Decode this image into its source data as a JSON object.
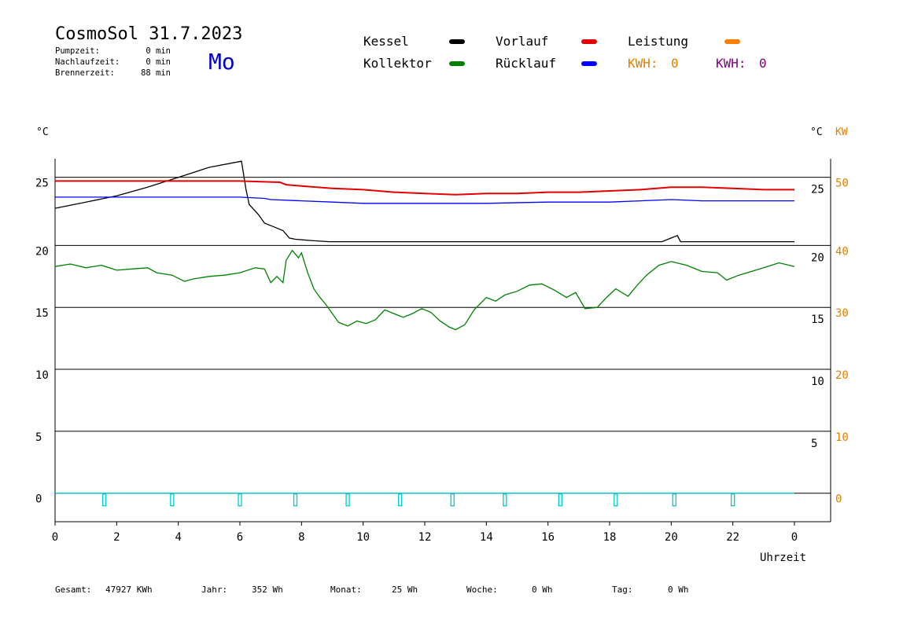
{
  "header": {
    "title": "CosmoSol 31.7.2023",
    "day": "Mo",
    "stats": [
      {
        "label": "Pumpzeit:",
        "value": "0 min"
      },
      {
        "label": "Nachlaufzeit:",
        "value": "0 min"
      },
      {
        "label": "Brennerzeit:",
        "value": "88 min"
      }
    ]
  },
  "legend": [
    {
      "name": "Kessel",
      "color": "#000000"
    },
    {
      "name": "Vorlauf",
      "color": "#e00000"
    },
    {
      "name": "Leistung",
      "color": "#ff8000"
    },
    {
      "name": "Kollektor",
      "color": "#008000"
    },
    {
      "name": "Rücklauf",
      "color": "#0000ff"
    }
  ],
  "kwh": [
    {
      "label": "KWH:",
      "value": "0",
      "color": "#e08000"
    },
    {
      "label": "KWH:",
      "value": "0",
      "color": "#800080"
    }
  ],
  "axes": {
    "left_unit": "°C",
    "right_unit": "°C",
    "right_unit2": "KW",
    "xlabel": "Uhrzeit",
    "x_ticks": [
      "0",
      "2",
      "4",
      "6",
      "8",
      "10",
      "12",
      "14",
      "16",
      "18",
      "20",
      "22",
      "0"
    ],
    "left_ticks": [
      "25",
      "20",
      "15",
      "10",
      "5",
      "0"
    ],
    "right_ticks": [
      "25",
      "20",
      "15",
      "10",
      "5"
    ],
    "kw_ticks": [
      "50",
      "40",
      "30",
      "20",
      "10",
      "0"
    ]
  },
  "footer": [
    {
      "label": "Gesamt:",
      "value": "47927 KWh"
    },
    {
      "label": "Jahr:",
      "value": "352 Wh"
    },
    {
      "label": "Monat:",
      "value": "25 Wh"
    },
    {
      "label": "Woche:",
      "value": "0 Wh"
    },
    {
      "label": "Tag:",
      "value": "0 Wh"
    }
  ],
  "chart_data": {
    "type": "line",
    "xlabel": "Uhrzeit",
    "ylabel": "°C",
    "xlim": [
      0,
      24
    ],
    "ylim": [
      -2.3,
      27
    ],
    "series": [
      {
        "name": "Kessel",
        "color": "#000000",
        "points": [
          [
            0,
            23.0
          ],
          [
            1,
            23.5
          ],
          [
            2,
            24.0
          ],
          [
            3,
            24.7
          ],
          [
            4,
            25.5
          ],
          [
            5,
            26.3
          ],
          [
            6.05,
            26.8
          ],
          [
            6.2,
            24.5
          ],
          [
            6.3,
            23.3
          ],
          [
            6.6,
            22.5
          ],
          [
            6.8,
            21.8
          ],
          [
            7.1,
            21.5
          ],
          [
            7.4,
            21.2
          ],
          [
            7.5,
            20.9
          ],
          [
            7.6,
            20.6
          ],
          [
            7.8,
            20.5
          ],
          [
            8.3,
            20.4
          ],
          [
            8.9,
            20.3
          ],
          [
            10,
            20.3
          ],
          [
            12,
            20.3
          ],
          [
            14,
            20.3
          ],
          [
            16,
            20.3
          ],
          [
            18,
            20.3
          ],
          [
            19.7,
            20.3
          ],
          [
            20,
            20.6
          ],
          [
            20.2,
            20.8
          ],
          [
            20.3,
            20.3
          ],
          [
            22,
            20.3
          ],
          [
            24,
            20.3
          ]
        ]
      },
      {
        "name": "Vorlauf",
        "color": "#e00000",
        "points": [
          [
            0,
            25.2
          ],
          [
            2,
            25.2
          ],
          [
            4,
            25.2
          ],
          [
            6,
            25.2
          ],
          [
            7.3,
            25.1
          ],
          [
            7.5,
            24.9
          ],
          [
            8,
            24.8
          ],
          [
            9,
            24.6
          ],
          [
            10,
            24.5
          ],
          [
            11,
            24.3
          ],
          [
            12,
            24.2
          ],
          [
            13,
            24.1
          ],
          [
            14,
            24.2
          ],
          [
            15,
            24.2
          ],
          [
            16,
            24.3
          ],
          [
            17,
            24.3
          ],
          [
            18,
            24.4
          ],
          [
            19,
            24.5
          ],
          [
            20,
            24.7
          ],
          [
            21,
            24.7
          ],
          [
            22,
            24.6
          ],
          [
            23,
            24.5
          ],
          [
            24,
            24.5
          ]
        ]
      },
      {
        "name": "Rücklauf",
        "color": "#0000ff",
        "points": [
          [
            0,
            23.9
          ],
          [
            2,
            23.9
          ],
          [
            4,
            23.9
          ],
          [
            6,
            23.9
          ],
          [
            6.8,
            23.8
          ],
          [
            7,
            23.7
          ],
          [
            8,
            23.6
          ],
          [
            9,
            23.5
          ],
          [
            10,
            23.4
          ],
          [
            12,
            23.4
          ],
          [
            14,
            23.4
          ],
          [
            16,
            23.5
          ],
          [
            18,
            23.5
          ],
          [
            19,
            23.6
          ],
          [
            20,
            23.7
          ],
          [
            21,
            23.6
          ],
          [
            22,
            23.6
          ],
          [
            24,
            23.6
          ]
        ]
      },
      {
        "name": "Kollektor",
        "color": "#008000",
        "points": [
          [
            0,
            18.3
          ],
          [
            0.5,
            18.5
          ],
          [
            1,
            18.2
          ],
          [
            1.5,
            18.4
          ],
          [
            2,
            18.0
          ],
          [
            2.5,
            18.1
          ],
          [
            3,
            18.2
          ],
          [
            3.3,
            17.8
          ],
          [
            3.8,
            17.6
          ],
          [
            4.2,
            17.1
          ],
          [
            4.5,
            17.3
          ],
          [
            5,
            17.5
          ],
          [
            5.5,
            17.6
          ],
          [
            6,
            17.8
          ],
          [
            6.5,
            18.2
          ],
          [
            6.8,
            18.1
          ],
          [
            7,
            17.0
          ],
          [
            7.2,
            17.5
          ],
          [
            7.4,
            17.0
          ],
          [
            7.5,
            18.8
          ],
          [
            7.7,
            19.6
          ],
          [
            7.9,
            19.0
          ],
          [
            8.0,
            19.4
          ],
          [
            8.2,
            17.8
          ],
          [
            8.4,
            16.5
          ],
          [
            8.6,
            15.8
          ],
          [
            8.8,
            15.2
          ],
          [
            9.0,
            14.5
          ],
          [
            9.2,
            13.8
          ],
          [
            9.5,
            13.5
          ],
          [
            9.8,
            13.9
          ],
          [
            10.1,
            13.7
          ],
          [
            10.4,
            14.0
          ],
          [
            10.7,
            14.8
          ],
          [
            11.0,
            14.5
          ],
          [
            11.3,
            14.2
          ],
          [
            11.6,
            14.5
          ],
          [
            11.9,
            14.9
          ],
          [
            12.2,
            14.6
          ],
          [
            12.5,
            13.9
          ],
          [
            12.8,
            13.4
          ],
          [
            13.0,
            13.2
          ],
          [
            13.3,
            13.6
          ],
          [
            13.6,
            14.8
          ],
          [
            14.0,
            15.8
          ],
          [
            14.3,
            15.5
          ],
          [
            14.6,
            16.0
          ],
          [
            15.0,
            16.3
          ],
          [
            15.4,
            16.8
          ],
          [
            15.8,
            16.9
          ],
          [
            16.2,
            16.4
          ],
          [
            16.6,
            15.8
          ],
          [
            16.9,
            16.2
          ],
          [
            17.2,
            14.9
          ],
          [
            17.6,
            15.0
          ],
          [
            17.9,
            15.8
          ],
          [
            18.2,
            16.5
          ],
          [
            18.6,
            15.9
          ],
          [
            18.9,
            16.8
          ],
          [
            19.2,
            17.6
          ],
          [
            19.6,
            18.4
          ],
          [
            20,
            18.7
          ],
          [
            20.5,
            18.4
          ],
          [
            21,
            17.9
          ],
          [
            21.5,
            17.8
          ],
          [
            21.8,
            17.2
          ],
          [
            22.2,
            17.6
          ],
          [
            22.6,
            17.9
          ],
          [
            23,
            18.2
          ],
          [
            23.5,
            18.6
          ],
          [
            24,
            18.3
          ]
        ]
      },
      {
        "name": "Pumpe",
        "color": "#00cccc",
        "points": [
          [
            0,
            0
          ],
          [
            24,
            0
          ]
        ]
      }
    ],
    "pulses": [
      1.6,
      3.8,
      6.0,
      7.8,
      9.5,
      11.2,
      12.9,
      14.6,
      16.4,
      18.2,
      20.1,
      22.0
    ]
  }
}
